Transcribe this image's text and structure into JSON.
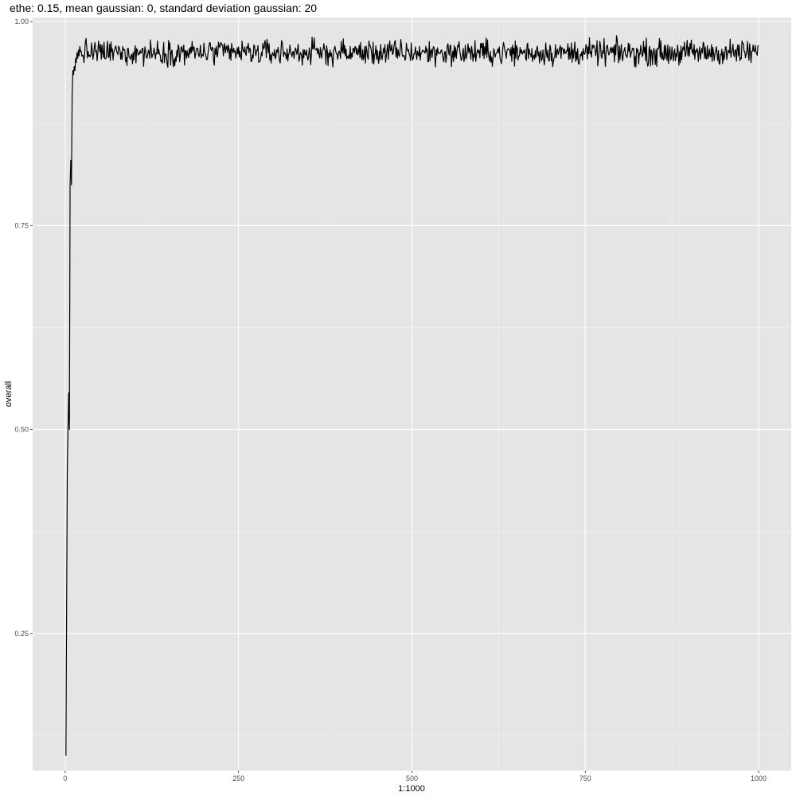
{
  "chart_data": {
    "type": "line",
    "title": "ethe: 0.15, mean gaussian: 0, standard deviation gaussian: 20",
    "xlabel": "1:1000",
    "ylabel": "overall",
    "xlim": [
      -47,
      1047
    ],
    "ylim": [
      0.082,
      1.005
    ],
    "x_ticks": [
      0,
      250,
      500,
      750,
      1000
    ],
    "x_tick_labels": [
      "0",
      "250",
      "500",
      "750",
      "1000"
    ],
    "y_ticks": [
      0.25,
      0.5,
      0.75,
      1.0
    ],
    "y_tick_labels": [
      "0.25",
      "0.50",
      "0.75",
      "1.00"
    ],
    "grid": true,
    "series": [
      {
        "color": "#000000",
        "initial_points": [
          {
            "x": 1,
            "y": 0.1
          },
          {
            "x": 2,
            "y": 0.28
          },
          {
            "x": 3,
            "y": 0.45
          },
          {
            "x": 4,
            "y": 0.5
          },
          {
            "x": 5,
            "y": 0.545
          },
          {
            "x": 6,
            "y": 0.5
          },
          {
            "x": 7,
            "y": 0.8
          },
          {
            "x": 8,
            "y": 0.83
          },
          {
            "x": 9,
            "y": 0.8
          },
          {
            "x": 10,
            "y": 0.91
          },
          {
            "x": 11,
            "y": 0.94
          },
          {
            "x": 12,
            "y": 0.935
          },
          {
            "x": 13,
            "y": 0.945
          },
          {
            "x": 14,
            "y": 0.94
          },
          {
            "x": 15,
            "y": 0.955
          },
          {
            "x": 16,
            "y": 0.95
          },
          {
            "x": 17,
            "y": 0.962
          },
          {
            "x": 18,
            "y": 0.955
          },
          {
            "x": 19,
            "y": 0.965
          },
          {
            "x": 20,
            "y": 0.958
          }
        ],
        "plateau_mean": 0.962,
        "plateau_amplitude": 0.0075,
        "x_end": 1000
      }
    ]
  }
}
